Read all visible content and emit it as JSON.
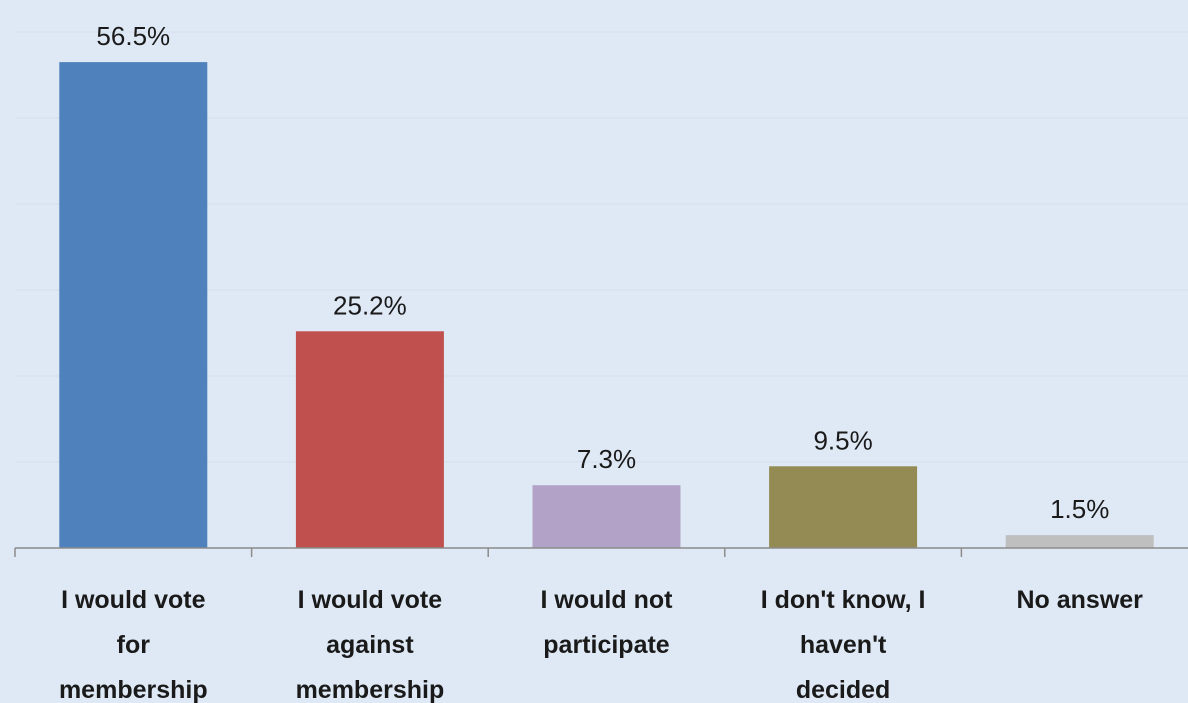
{
  "chart_data": {
    "type": "bar",
    "categories": [
      [
        "I would vote",
        "for",
        "membership"
      ],
      [
        "I would vote",
        "against",
        "membership"
      ],
      [
        "I would not",
        "participate"
      ],
      [
        "I don't know, I",
        "haven't",
        "decided"
      ],
      [
        "No answer"
      ]
    ],
    "values": [
      56.5,
      25.2,
      7.3,
      9.5,
      1.5
    ],
    "data_labels": [
      "56.5%",
      "25.2%",
      "7.3%",
      "9.5%",
      "1.5%"
    ],
    "colors": [
      "#4f81bd",
      "#c0504d",
      "#b3a2c7",
      "#948a54",
      "#bfbfbf"
    ],
    "ylim": [
      0,
      60
    ],
    "grid": true,
    "title": "",
    "xlabel": "",
    "ylabel": ""
  }
}
